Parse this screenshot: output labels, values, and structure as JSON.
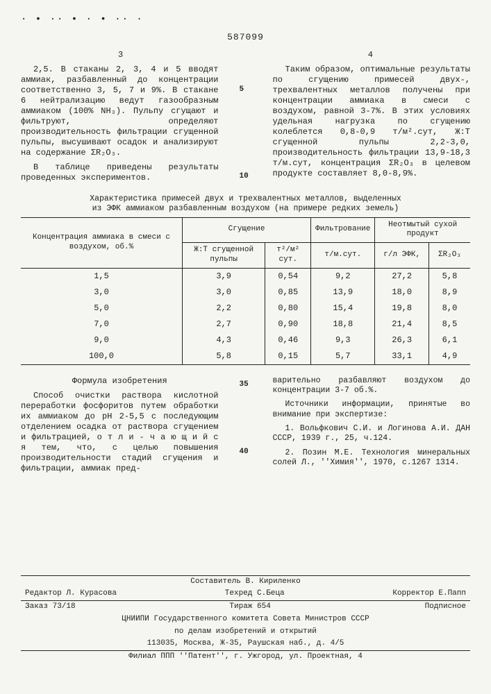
{
  "docnum": "587099",
  "page_left": "3",
  "page_right": "4",
  "linenum_5": "5",
  "linenum_10": "10",
  "linenum_35": "35",
  "linenum_40": "40",
  "col_left_p1": "2,5. В стаканы 2, 3, 4 и 5 вводят аммиак, разбавленный до концентрации соответственно 3, 5, 7 и 9%. В стакане 6 нейтрализацию ведут газообразным аммиаком (100% NH₃). Пульпу сгущают и фильтруют, определяют производительность фильтрации сгущенной пульпы, высушивают осадок и анализируют на содержание ΣR₂O₃.",
  "col_left_p2": "В таблице приведены результаты проведенных экспериментов.",
  "col_right_p1": "Таким образом, оптимальные результаты по сгущению примесей двух-, трехвалентных металлов получены при концентрации аммиака в смеси с воздухом, равной 3-7%. В этих условиях удельная нагрузка по сгущению колеблется 0,8-0,9 т/м².сут, Ж:Т сгущенной пульпы 2,2-3,0, производительность фильтрации 13,9-18,3 т/м.сут, концентрация ΣR₂O₃ в целевом продукте составляет 8,0-8,9%.",
  "table_caption_l1": "Характеристика примесей двух и трехвалентных металлов, выделенных",
  "table_caption_l2": "из ЭФК аммиаком разбавленным воздухом (на примере редких земель)",
  "th_conc": "Концентрация аммиака в смеси с воздухом, об.%",
  "th_group_thick": "Сгущение",
  "th_group_filter": "Фильтрование",
  "th_group_product": "Неотмытый сухой продукт",
  "th_zht": "Ж:Т сгущенной пульпы",
  "th_tm2": "т²/м² сут.",
  "th_tmsut": "т/м.сут.",
  "th_gl": "г/л ЭФК,",
  "th_sr2o3": "ΣR₂O₃",
  "rows": [
    [
      "1,5",
      "3,9",
      "0,54",
      "9,2",
      "27,2",
      "5,8"
    ],
    [
      "3,0",
      "3,0",
      "0,85",
      "13,9",
      "18,0",
      "8,9"
    ],
    [
      "5,0",
      "2,2",
      "0,80",
      "15,4",
      "19,8",
      "8,0"
    ],
    [
      "7,0",
      "2,7",
      "0,90",
      "18,8",
      "21,4",
      "8,5"
    ],
    [
      "9,0",
      "4,3",
      "0,46",
      "9,3",
      "26,3",
      "6,1"
    ],
    [
      "100,0",
      "5,8",
      "0,15",
      "5,7",
      "33,1",
      "4,9"
    ]
  ],
  "formula_title": "Формула изобретения",
  "formula_body": "Способ очистки раствора кислотной переработки фосфоритов путем обработки их аммиаком до рН 2-5,5 с последующим отделением осадка от раствора сгущением и фильтрацией, о т л и - ч а ю щ и й с я тем, что, с целью повышения производительности стадий сгущения и фильтрации, аммиак пред-",
  "formula_cont": "варительно разбавляют воздухом до концентрации 3-7 об.%.",
  "sources_title": "Источники информации, принятые во внимание при экспертизе:",
  "source1": "1. Вольфкович С.И. и Логинова А.И. ДАН СССР, 1939 г., 25, ч.124.",
  "source2": "2. Позин М.Е. Технология минеральных солей Л., ''Химия'', 1970, с.1267 1314.",
  "footer": {
    "editor": "Редактор Л. Курасова",
    "composer": "Составитель В. Кириленко",
    "techred": "Техред С.Беца",
    "corrector": "Корректор   Е.Папп",
    "order": "Заказ 73/18",
    "tirazh": "Тираж 654",
    "subscription": "Подписное",
    "org1": "ЦНИИПИ Государственного комитета Совета Министров СССР",
    "org2": "по делам изобретений и открытий",
    "addr": "113035, Москва, Ж-35, Раушская наб., д. 4/5",
    "filial": "Филиал ППП ''Патент'', г. Ужгород, ул. Проектная, 4"
  }
}
